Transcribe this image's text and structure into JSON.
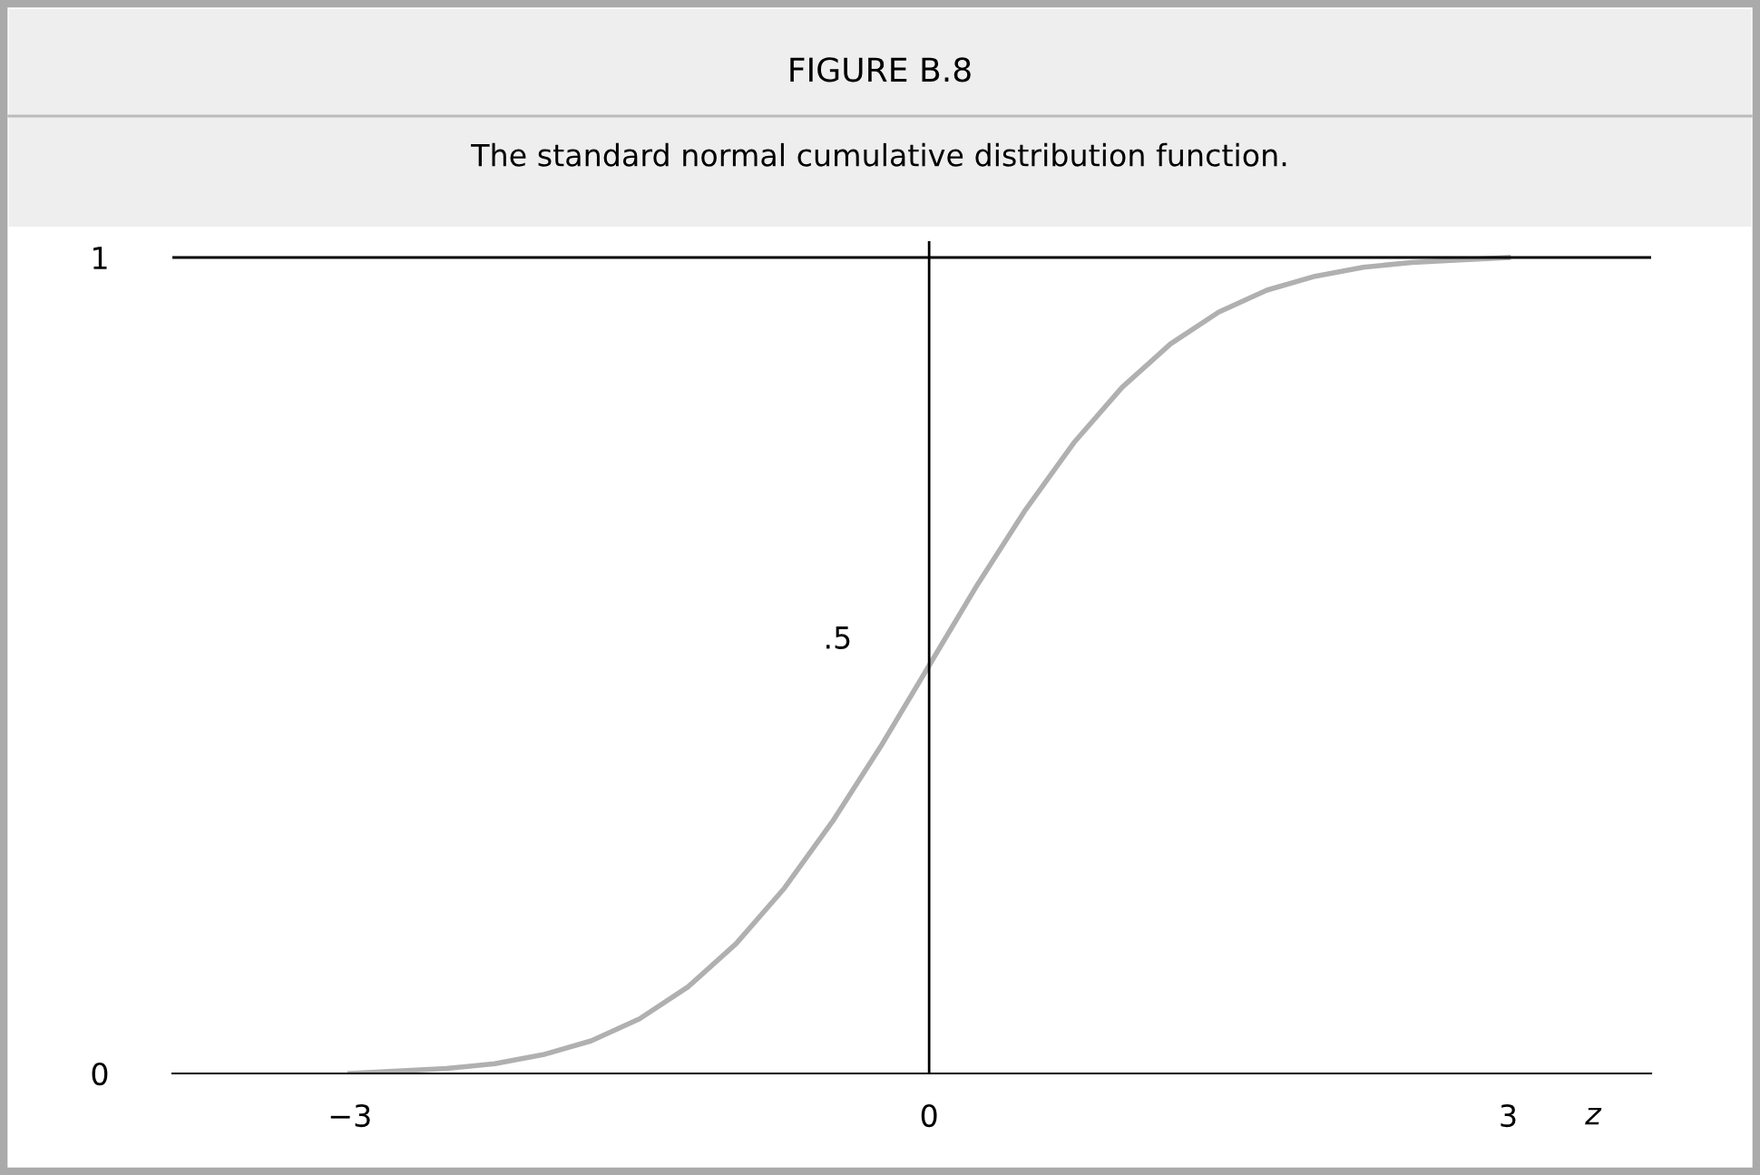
{
  "chart_data": {
    "type": "line",
    "title": "FIGURE B.8",
    "subtitle": "The standard normal cumulative distribution function.",
    "xlabel": "z",
    "x": [
      -3,
      -2.75,
      -2.5,
      -2.25,
      -2,
      -1.75,
      -1.5,
      -1.25,
      -1,
      -0.75,
      -0.5,
      -0.25,
      0,
      0.25,
      0.5,
      0.75,
      1,
      1.25,
      1.5,
      1.75,
      2,
      2.25,
      2.5,
      2.75,
      3
    ],
    "series": [
      {
        "color": "#b0b0b0",
        "values": [
          0.0,
          0.003,
          0.006,
          0.012,
          0.023,
          0.04,
          0.067,
          0.106,
          0.159,
          0.227,
          0.309,
          0.401,
          0.5,
          0.599,
          0.691,
          0.773,
          0.841,
          0.894,
          0.933,
          0.96,
          0.977,
          0.988,
          0.994,
          0.997,
          1.0
        ]
      }
    ],
    "xlim": [
      -3.92,
      3.74
    ],
    "ylim": [
      0,
      1.02
    ],
    "xticks": [
      {
        "value": -3,
        "label": "−3"
      },
      0,
      3
    ],
    "yticks": [
      0,
      1
    ],
    "ref_lines": [
      {
        "axis": "x",
        "value": 0,
        "color": "#000000"
      },
      {
        "axis": "y",
        "value": 1,
        "color": "#000000"
      }
    ],
    "annotations": [
      {
        "text": ".5",
        "x": 0,
        "y": 0.5
      }
    ],
    "grid": false,
    "legend": false,
    "marker": "none",
    "line_style": "solid"
  }
}
